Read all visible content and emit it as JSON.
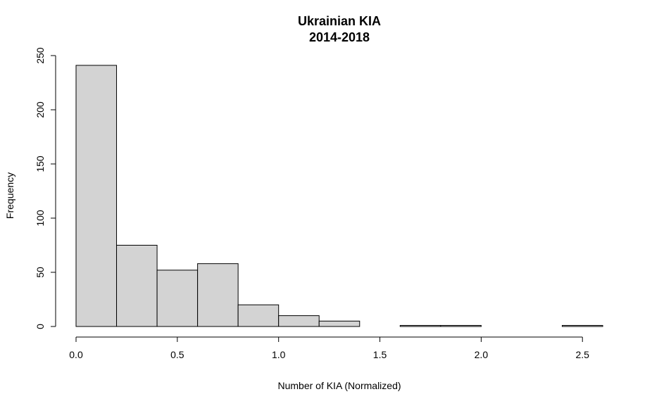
{
  "chart_data": {
    "type": "bar",
    "title": "Ukrainian KIA",
    "subtitle": "2014-2018",
    "xlabel": "Number of KIA (Normalized)",
    "ylabel": "Frequency",
    "bin_edges": [
      0.0,
      0.2,
      0.4,
      0.6,
      0.8,
      1.0,
      1.2,
      1.4,
      1.6,
      1.8,
      2.0,
      2.2,
      2.4,
      2.6
    ],
    "values": [
      241,
      75,
      52,
      58,
      20,
      10,
      5,
      0,
      1,
      1,
      0,
      0,
      1
    ],
    "xlim": [
      0,
      2.6
    ],
    "ylim": [
      0,
      250
    ],
    "x_ticks": [
      0.0,
      0.5,
      1.0,
      1.5,
      2.0,
      2.5
    ],
    "x_tick_labels": [
      "0.0",
      "0.5",
      "1.0",
      "1.5",
      "2.0",
      "2.5"
    ],
    "y_ticks": [
      0,
      50,
      100,
      150,
      200,
      250
    ],
    "y_tick_labels": [
      "0",
      "50",
      "100",
      "150",
      "200",
      "250"
    ],
    "grid": false,
    "bar_color": "#d3d3d3",
    "edge_color": "#000000"
  }
}
